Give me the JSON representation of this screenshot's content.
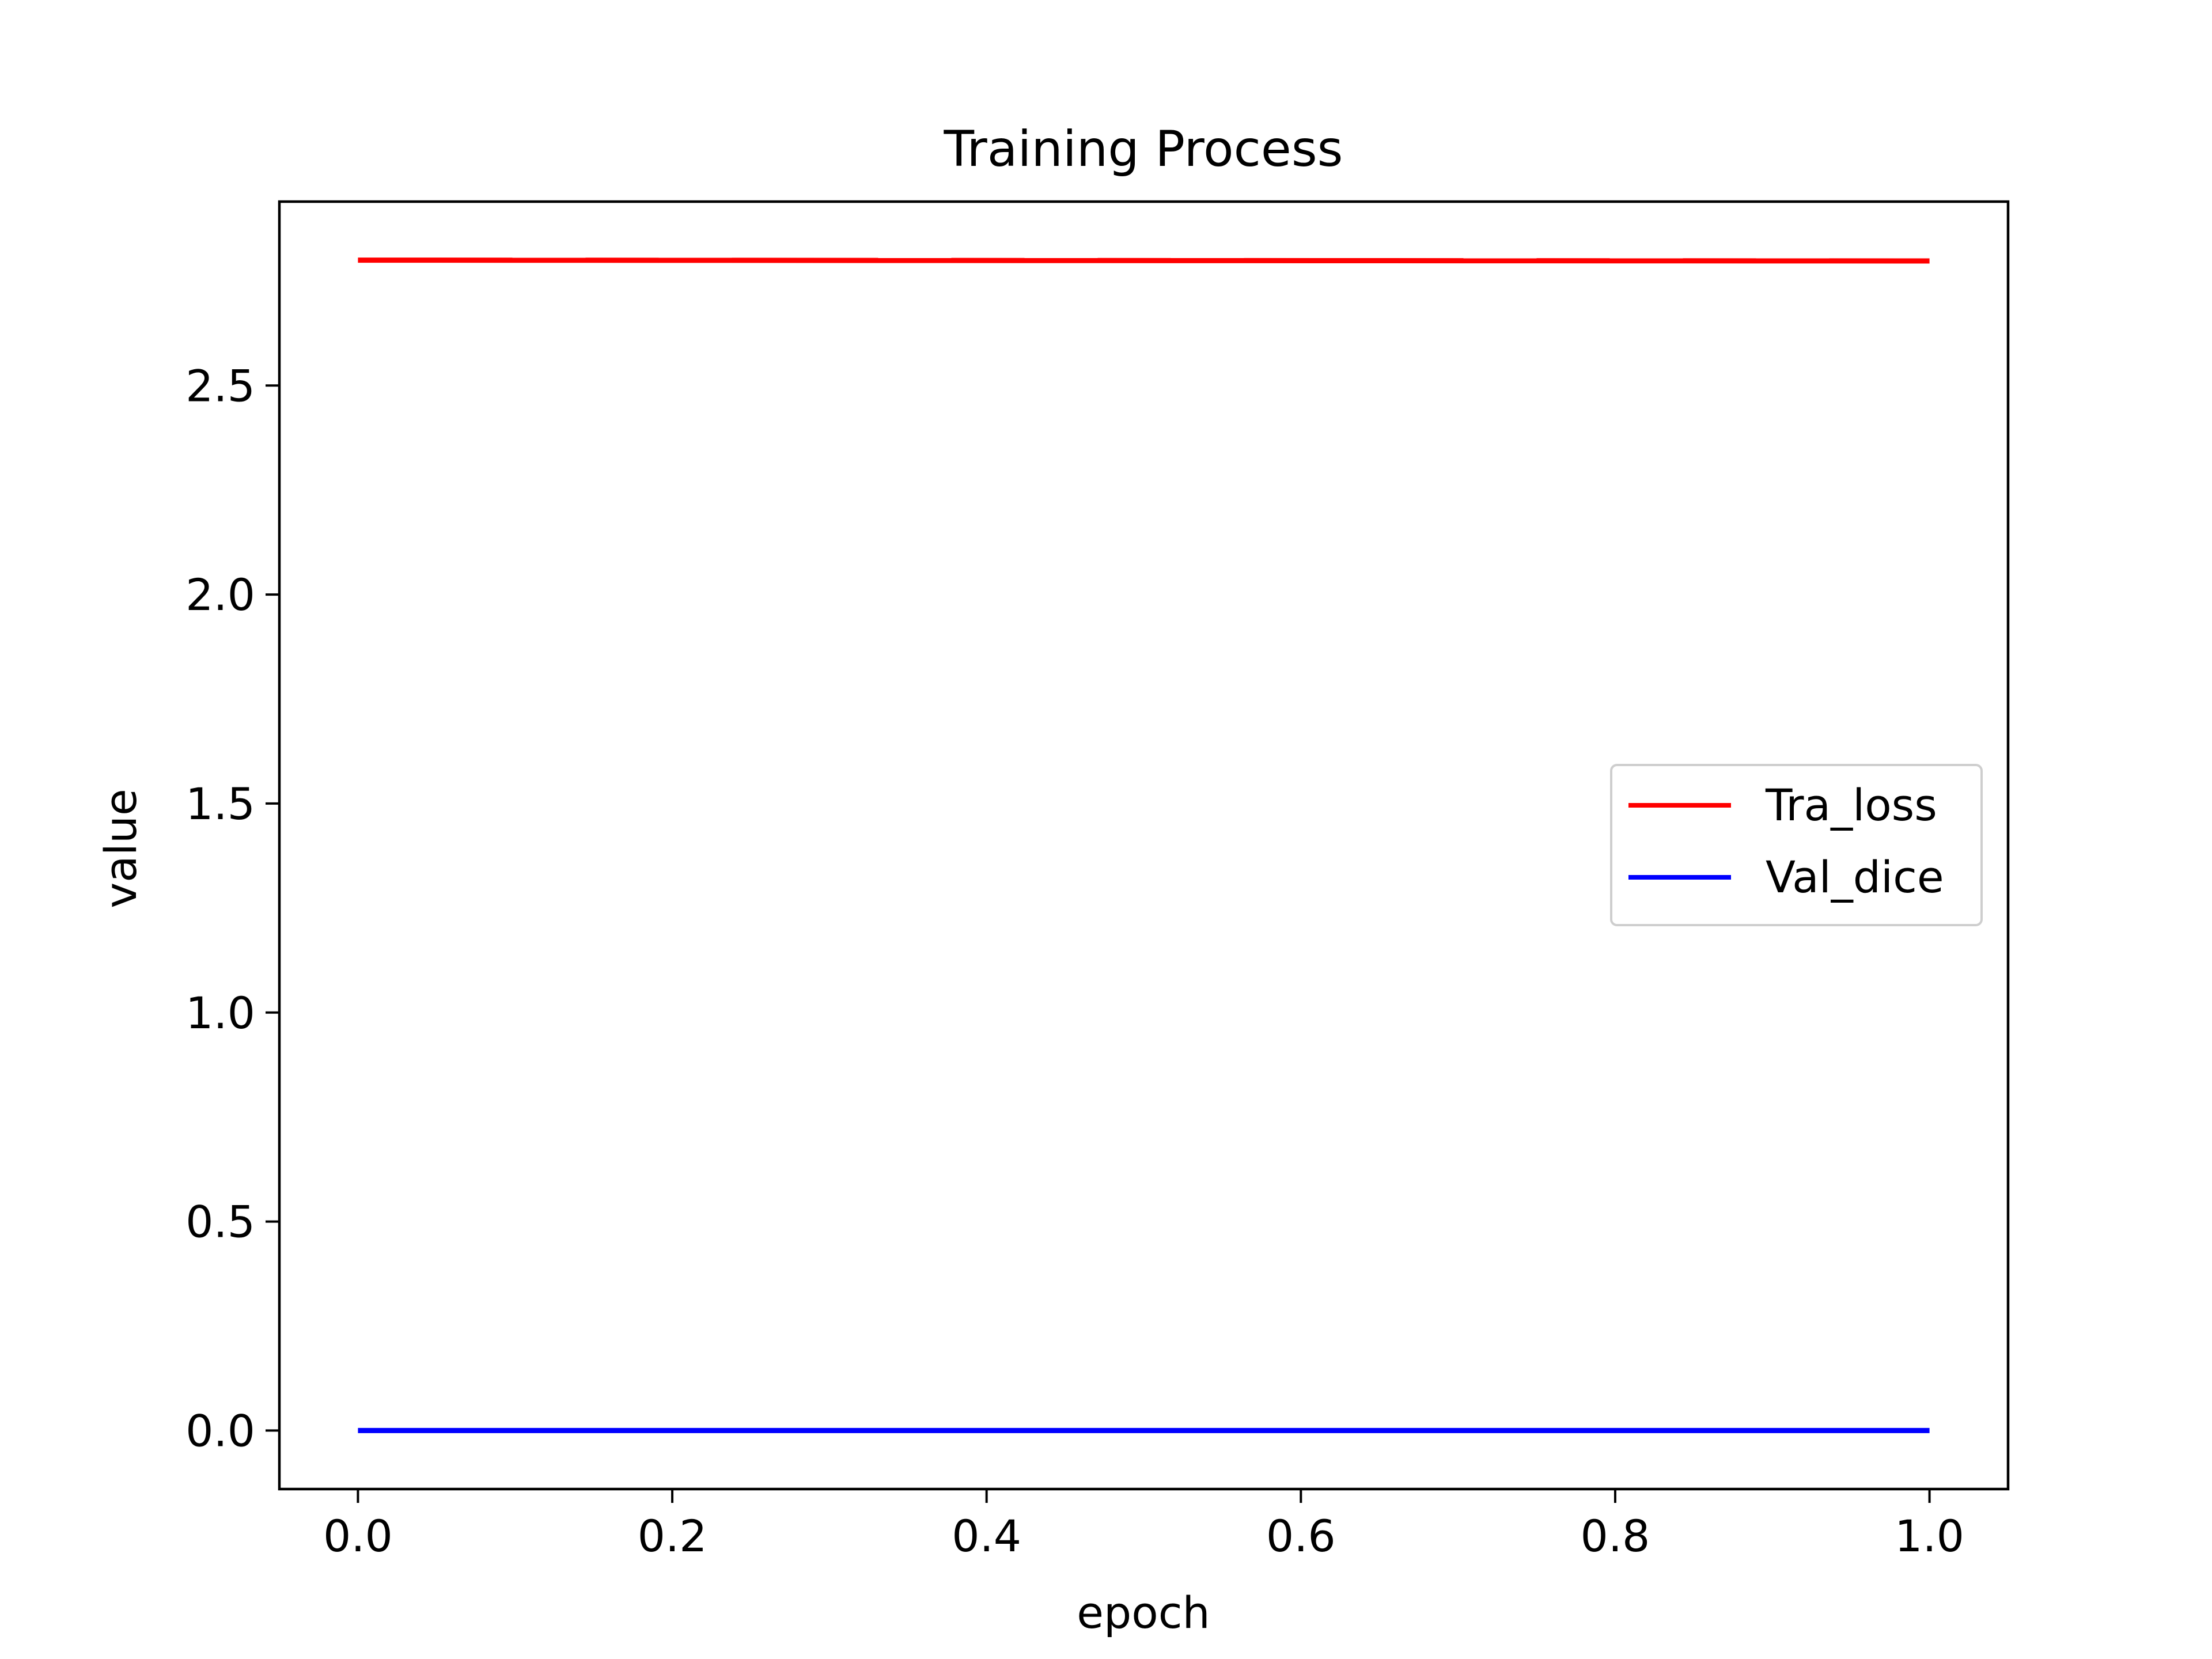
{
  "chart_data": {
    "type": "line",
    "title": "Training Process",
    "xlabel": "epoch",
    "ylabel": "value",
    "x": [
      0.0,
      1.0
    ],
    "series": [
      {
        "name": "Tra_loss",
        "color": "#ff0000",
        "values": [
          2.8,
          2.798
        ]
      },
      {
        "name": "Val_dice",
        "color": "#0000ff",
        "values": [
          0.0,
          0.0
        ]
      }
    ],
    "xlim": [
      -0.05,
      1.05
    ],
    "ylim": [
      -0.14,
      2.94
    ],
    "xticks": [
      0.0,
      0.2,
      0.4,
      0.6,
      0.8,
      1.0
    ],
    "xtick_labels": [
      "0.0",
      "0.2",
      "0.4",
      "0.6",
      "0.8",
      "1.0"
    ],
    "yticks": [
      0.0,
      0.5,
      1.0,
      1.5,
      2.0,
      2.5
    ],
    "ytick_labels": [
      "0.0",
      "0.5",
      "1.0",
      "1.5",
      "2.0",
      "2.5"
    ],
    "grid": false,
    "legend_position": "center-right"
  }
}
